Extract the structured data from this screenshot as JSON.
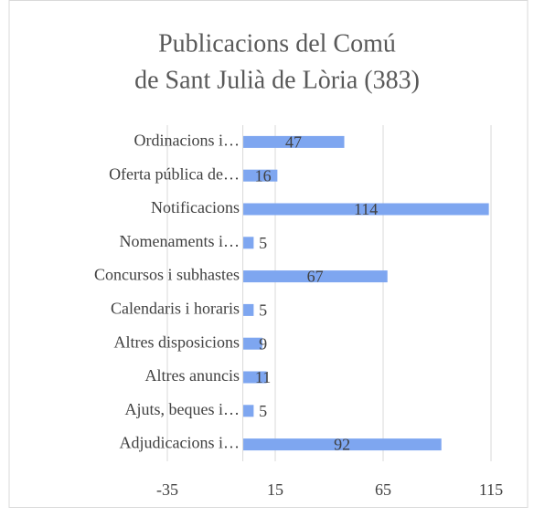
{
  "chart_data": {
    "type": "barh",
    "title": [
      "Publicacions del Comú",
      "de Sant Julià de Lòria (383)"
    ],
    "categories": [
      "Ordinacions i…",
      "Oferta pública de…",
      "Notificacions",
      "Nomenaments i…",
      "Concursos i subhastes",
      "Calendaris i horaris",
      "Altres disposicions",
      "Altres anuncis",
      "Ajuts, beques i…",
      "Adjudicacions i…"
    ],
    "values": [
      47,
      16,
      114,
      5,
      67,
      5,
      9,
      11,
      5,
      92
    ],
    "color": "#7ea6f0",
    "xlim": [
      -35,
      115
    ],
    "xticks": [
      -35,
      15,
      65,
      115
    ],
    "grid": true
  }
}
